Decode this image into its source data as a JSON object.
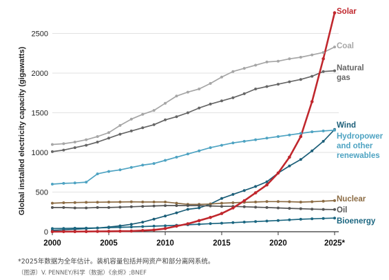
{
  "chart_data": {
    "type": "line",
    "ylabel": "Global installed electricity capacity (gigawatts)",
    "xlabel": "",
    "xlim": [
      2000,
      2025
    ],
    "ylim": [
      0,
      2800
    ],
    "x_ticks": [
      "2000",
      "2005",
      "2010",
      "2015",
      "2020",
      "2025*"
    ],
    "y_ticks": [
      "0",
      "500",
      "1000",
      "1500",
      "2000",
      "2500"
    ],
    "grid": "horizontal",
    "x": [
      2000,
      2001,
      2002,
      2003,
      2004,
      2005,
      2006,
      2007,
      2008,
      2009,
      2010,
      2011,
      2012,
      2013,
      2014,
      2015,
      2016,
      2017,
      2018,
      2019,
      2020,
      2021,
      2022,
      2023,
      2024,
      2025
    ],
    "series": [
      {
        "name": "Coal",
        "color": "#a6a6a6",
        "label_lines": [
          "Coal"
        ],
        "values": [
          1100,
          1110,
          1130,
          1160,
          1200,
          1250,
          1340,
          1420,
          1480,
          1530,
          1620,
          1710,
          1760,
          1800,
          1870,
          1950,
          2020,
          2060,
          2100,
          2140,
          2150,
          2180,
          2200,
          2230,
          2260,
          2330
        ]
      },
      {
        "name": "Natural gas",
        "color": "#666666",
        "label_lines": [
          "Natural",
          "gas"
        ],
        "values": [
          1010,
          1030,
          1060,
          1090,
          1130,
          1180,
          1230,
          1270,
          1310,
          1350,
          1410,
          1450,
          1500,
          1560,
          1610,
          1650,
          1690,
          1740,
          1800,
          1830,
          1860,
          1890,
          1920,
          1960,
          2020,
          2030
        ]
      },
      {
        "name": "Solar",
        "color": "#c0272d",
        "label_lines": [
          "Solar"
        ],
        "values": [
          1,
          2,
          2,
          3,
          4,
          5,
          7,
          9,
          15,
          23,
          40,
          70,
          100,
          140,
          180,
          230,
          300,
          390,
          490,
          590,
          740,
          940,
          1200,
          1640,
          2180,
          2760
        ]
      },
      {
        "name": "Wind",
        "color": "#1b5e78",
        "label_lines": [
          "Wind"
        ],
        "values": [
          17,
          24,
          31,
          39,
          47,
          59,
          74,
          94,
          121,
          159,
          198,
          238,
          283,
          300,
          350,
          420,
          470,
          520,
          570,
          630,
          740,
          830,
          910,
          1020,
          1140,
          1290
        ]
      },
      {
        "name": "Hydropower and other renewables",
        "color": "#4ea3c2",
        "label_lines": [
          "Hydropower",
          "and other",
          "renewables"
        ],
        "values": [
          600,
          610,
          615,
          625,
          730,
          760,
          780,
          810,
          840,
          860,
          900,
          940,
          980,
          1020,
          1060,
          1090,
          1120,
          1140,
          1160,
          1180,
          1200,
          1220,
          1240,
          1260,
          1270,
          1280
        ]
      },
      {
        "name": "Nuclear",
        "color": "#8b6b43",
        "label_lines": [
          "Nuclear"
        ],
        "values": [
          360,
          365,
          368,
          370,
          372,
          374,
          375,
          377,
          375,
          375,
          375,
          360,
          345,
          345,
          350,
          360,
          365,
          370,
          375,
          380,
          380,
          378,
          374,
          378,
          385,
          392
        ]
      },
      {
        "name": "Oil",
        "color": "#555555",
        "label_lines": [
          "Oil"
        ],
        "values": [
          305,
          305,
          300,
          300,
          305,
          305,
          310,
          315,
          320,
          325,
          330,
          330,
          330,
          330,
          325,
          320,
          320,
          315,
          310,
          305,
          300,
          295,
          290,
          285,
          282,
          280
        ]
      },
      {
        "name": "Bioenergy",
        "color": "#1b6680",
        "label_lines": [
          "Bioenergy"
        ],
        "values": [
          40,
          42,
          44,
          46,
          48,
          52,
          56,
          60,
          65,
          70,
          75,
          82,
          88,
          95,
          102,
          108,
          115,
          122,
          128,
          135,
          142,
          150,
          157,
          163,
          168,
          172
        ]
      }
    ]
  },
  "footnote": "*2025年数据为全年估计。装机容量包括并网资产和部分离网系统。",
  "credit": "（图源）V. PENNEY/科学（数据）《余烬》;BNEF"
}
